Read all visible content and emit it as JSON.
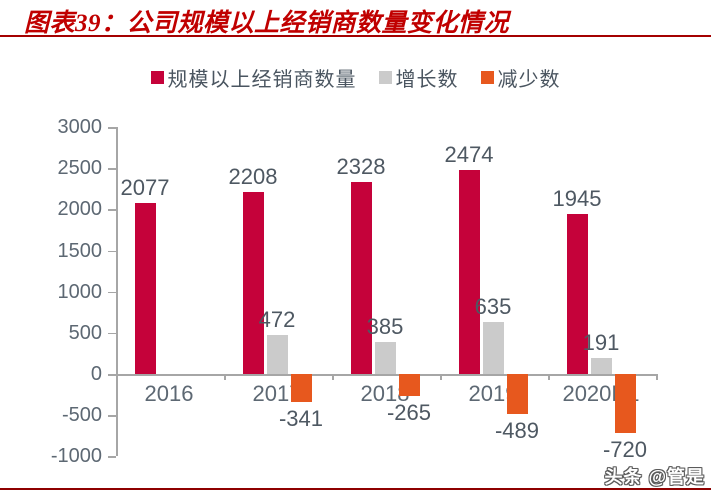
{
  "title": "图表39：公司规模以上经销商数量变化情况",
  "watermark": "头条 @管是",
  "colors": {
    "title_red": "#C00000",
    "title_underline": "#A40000",
    "bottom_line": "#8E0000",
    "axis_gray": "#A6A6A6",
    "tick_label": "#5D6873",
    "value_label": "#4E5862"
  },
  "chart_data": {
    "type": "bar",
    "title": "图表39：公司规模以上经销商数量变化情况",
    "categories": [
      "2016",
      "2017",
      "2018",
      "2019",
      "2020H1"
    ],
    "series": [
      {
        "name": "规模以上经销商数量",
        "key": "dealer-count",
        "color": "#C5023A",
        "values": [
          2077,
          2208,
          2328,
          2474,
          1945
        ]
      },
      {
        "name": "增长数",
        "key": "increase",
        "color": "#CBCBCB",
        "values": [
          null,
          472,
          385,
          635,
          191
        ]
      },
      {
        "name": "减少数",
        "key": "decrease",
        "color": "#E7581E",
        "values": [
          null,
          -341,
          -265,
          -489,
          -720
        ]
      }
    ],
    "ylim": [
      -1000,
      3000
    ],
    "yticks": [
      3000,
      2500,
      2000,
      1500,
      1000,
      500,
      0,
      -500,
      -1000
    ],
    "legend_position": "top",
    "grid": false,
    "data_labels": true
  }
}
